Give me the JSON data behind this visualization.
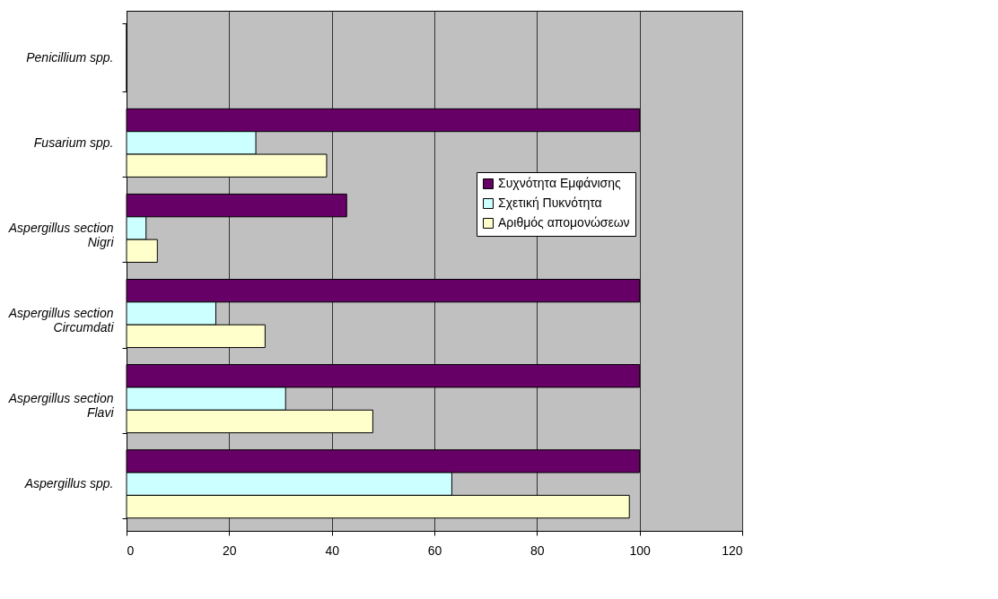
{
  "chart_data": {
    "type": "bar",
    "orientation": "horizontal",
    "categories": [
      "Penicillium spp.",
      "Fusarium spp.",
      "Aspergillus section\nNigri",
      "Aspergillus section\nCircumdati",
      "Aspergillus  section\nFlavi",
      "Aspergillus spp."
    ],
    "series": [
      {
        "name": "Συχνότητα Εμφάνισης",
        "color": "#660066",
        "values": [
          0,
          100,
          42.9,
          100,
          100,
          100
        ]
      },
      {
        "name": "Σχετική Πυκνότητα",
        "color": "#ccffff",
        "values": [
          0,
          25.2,
          3.8,
          17.4,
          31,
          63.4
        ]
      },
      {
        "name": "Αριθμός απομονώσεων",
        "color": "#ffffcc",
        "values": [
          0,
          39,
          6,
          27,
          48,
          98
        ]
      }
    ],
    "xlim": [
      0,
      120
    ],
    "xticks": [
      0,
      20,
      40,
      60,
      80,
      100,
      120
    ],
    "grid": "x",
    "legend": "right"
  }
}
